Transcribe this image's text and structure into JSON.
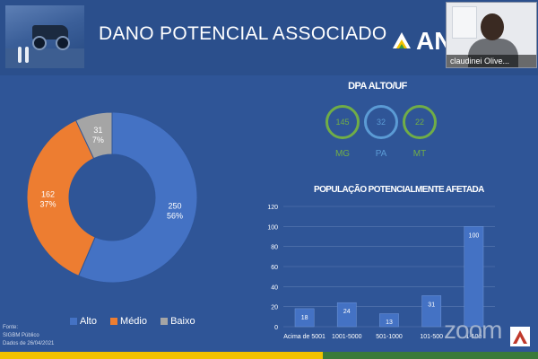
{
  "header": {
    "title": "DANO POTENCIAL ASSOCIADO",
    "logo_text": "AN"
  },
  "video_tile": {
    "participant_name": "claudinei Olive..."
  },
  "colors": {
    "background": "#2f5597",
    "alto": "#4472c4",
    "medio": "#ed7d31",
    "baixo": "#a5a5a5",
    "ring_green": "#70ad47",
    "ring_blue": "#5b9bd5"
  },
  "chart_data": [
    {
      "type": "pie",
      "title": "",
      "categories": [
        "Alto",
        "Médio",
        "Baixo"
      ],
      "values": [
        250,
        162,
        31
      ],
      "percent_labels": [
        "56%",
        "37%",
        "7%"
      ],
      "legend": "bottom"
    },
    {
      "type": "bar",
      "title": "POPULAÇÃO POTENCIALMENTE AFETADA",
      "categories": [
        "Acima de 5001",
        "1001-5000",
        "501-1000",
        "101-500",
        "1-100"
      ],
      "values": [
        18,
        24,
        13,
        31,
        100
      ],
      "ylim": [
        0,
        120
      ],
      "yticks": [
        0,
        20,
        40,
        60,
        80,
        100,
        120
      ],
      "grid": true
    }
  ],
  "dpa": {
    "title": "DPA ALTO/UF",
    "items": [
      {
        "uf": "MG",
        "value": "145",
        "color": "#70ad47"
      },
      {
        "uf": "PA",
        "value": "32",
        "color": "#5b9bd5"
      },
      {
        "uf": "MT",
        "value": "22",
        "color": "#70ad47"
      }
    ]
  },
  "footer": {
    "line1": "Fonte:",
    "line2": "SIGBM Público",
    "line3": "Dados de 26/04/2021",
    "zoom_watermark": "zoom"
  }
}
